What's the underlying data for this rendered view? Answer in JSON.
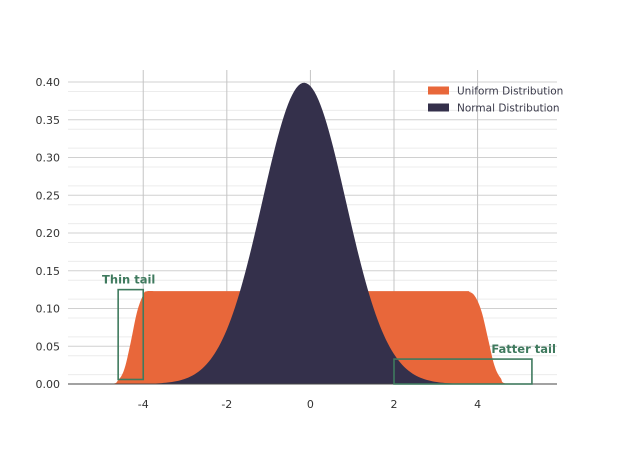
{
  "chart_data": {
    "type": "area",
    "title": "",
    "xlabel": "",
    "ylabel": "",
    "xlim": [
      -5.8,
      5.9
    ],
    "ylim": [
      0,
      0.4
    ],
    "x_ticks": [
      -4,
      -2,
      0,
      2,
      4
    ],
    "x_tick_labels": [
      "-4",
      "-2",
      "0",
      "2",
      "4"
    ],
    "y_ticks": [
      0,
      0.05,
      0.1,
      0.15,
      0.2,
      0.25,
      0.3,
      0.35,
      0.4
    ],
    "y_tick_labels": [
      "0.00",
      "0.05",
      "0.10",
      "0.15",
      "0.20",
      "0.25",
      "0.30",
      "0.35",
      "0.40"
    ],
    "grid": true,
    "legend_position": "top-right",
    "series": [
      {
        "name": "Uniform Distribution",
        "color": "#e8673a",
        "x": [
          -5.8,
          -4.8,
          -4.6,
          -4.45,
          -4.3,
          -4.15,
          -4.0,
          -3.9,
          -3.5,
          0,
          3.5,
          3.8,
          3.95,
          4.1,
          4.25,
          4.4,
          4.55,
          4.75,
          5.9
        ],
        "values": [
          0,
          0,
          0.005,
          0.02,
          0.055,
          0.095,
          0.118,
          0.123,
          0.123,
          0.123,
          0.123,
          0.122,
          0.115,
          0.095,
          0.06,
          0.025,
          0.008,
          0,
          0
        ]
      },
      {
        "name": "Normal Distribution",
        "color": "#34304b",
        "distribution": "normal",
        "mean": -0.15,
        "std": 1.0,
        "peak": 0.399
      }
    ],
    "annotations": [
      {
        "text": "Thin tail",
        "color": "#3f7a5e",
        "x_range": [
          -4.6,
          -4.0
        ],
        "y_range": [
          0.006,
          0.125
        ]
      },
      {
        "text": "Fatter tail",
        "color": "#3f7a5e",
        "x_range": [
          2.0,
          5.3
        ],
        "y_range": [
          0.0,
          0.033
        ]
      }
    ]
  }
}
